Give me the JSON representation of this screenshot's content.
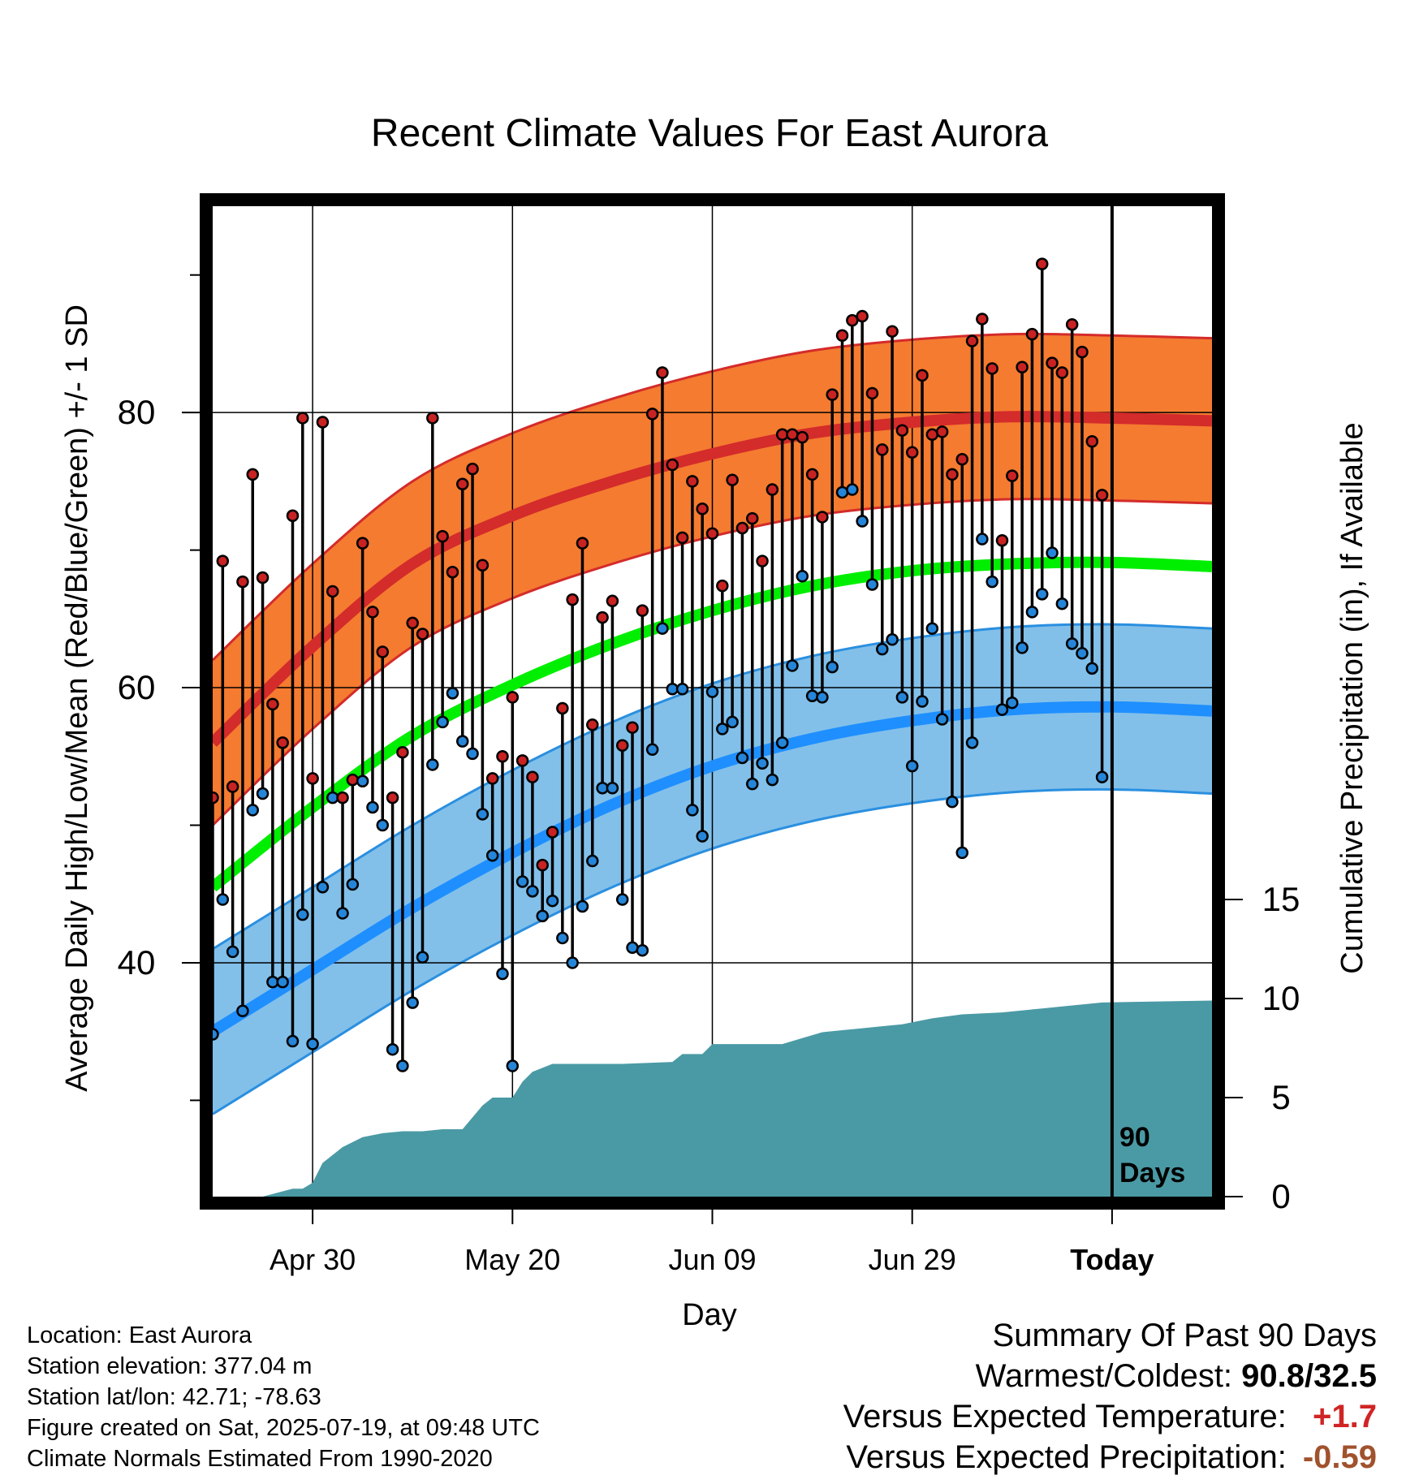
{
  "chart_data": {
    "type": "line",
    "title": "Recent Climate Values For East Aurora",
    "xlabel": "Day",
    "ylabel": "Average Daily High/Low/Mean (Red/Blue/Green) +/- 1 SD",
    "ylabel_right": "Cumulative Precipitation (in), If Available",
    "x_ticks": [
      "Apr 30",
      "May 20",
      "Jun 09",
      "Jun 29",
      "Today"
    ],
    "x_tick_days": [
      11,
      31,
      51,
      71,
      91
    ],
    "x_range_days": [
      1,
      101
    ],
    "y_ticks": [
      40,
      60,
      80
    ],
    "ylim": [
      23,
      95
    ],
    "y2_ticks": [
      0,
      5,
      10,
      15
    ],
    "y2lim": [
      0,
      50
    ],
    "grid": true,
    "today_marker_label": [
      "90",
      "Days"
    ],
    "normals": {
      "days": [
        1,
        11,
        21,
        31,
        41,
        51,
        61,
        71,
        81,
        91,
        101
      ],
      "high_mean": [
        56.0,
        63.0,
        69.0,
        72.5,
        75.0,
        77.0,
        78.5,
        79.3,
        79.7,
        79.6,
        79.4
      ],
      "high_sd": 6.0,
      "low_mean": [
        35.0,
        39.5,
        44.0,
        48.0,
        51.5,
        54.3,
        56.3,
        57.6,
        58.4,
        58.6,
        58.3
      ],
      "low_sd": 6.0,
      "mean": [
        45.5,
        51.3,
        56.5,
        60.2,
        63.2,
        65.6,
        67.4,
        68.5,
        69.0,
        69.1,
        68.8
      ]
    },
    "series": [
      {
        "name": "Daily High",
        "color": "#c82222",
        "x": [
          1,
          2,
          3,
          4,
          5,
          6,
          7,
          8,
          9,
          10,
          11,
          12,
          13,
          14,
          15,
          16,
          17,
          18,
          19,
          20,
          21,
          22,
          23,
          24,
          25,
          26,
          27,
          28,
          29,
          30,
          31,
          32,
          33,
          34,
          35,
          36,
          37,
          38,
          39,
          40,
          41,
          42,
          43,
          44,
          45,
          46,
          47,
          48,
          49,
          50,
          51,
          52,
          53,
          54,
          55,
          56,
          57,
          58,
          59,
          60,
          61,
          62,
          63,
          64,
          65,
          66,
          67,
          68,
          69,
          70,
          71,
          72,
          73,
          74,
          75,
          76,
          77,
          78,
          79,
          80,
          81,
          82,
          83,
          84,
          85,
          86,
          87,
          88,
          89,
          90
        ],
        "values": [
          52.0,
          69.2,
          52.8,
          67.7,
          75.5,
          68.0,
          58.8,
          56.0,
          72.5,
          79.6,
          53.4,
          79.3,
          67.0,
          52.0,
          53.3,
          70.5,
          65.5,
          62.6,
          52.0,
          55.3,
          64.7,
          63.9,
          79.6,
          71.0,
          68.4,
          74.8,
          75.9,
          68.9,
          53.4,
          55.0,
          59.3,
          54.7,
          53.5,
          47.1,
          49.5,
          58.5,
          66.4,
          70.5,
          57.3,
          65.1,
          66.3,
          55.8,
          57.1,
          65.6,
          79.9,
          82.9,
          76.2,
          70.9,
          75.0,
          73.0,
          71.2,
          67.4,
          75.1,
          71.6,
          72.3,
          69.2,
          74.4,
          78.4,
          78.4,
          78.2,
          75.5,
          72.4,
          81.3,
          85.6,
          86.7,
          87.0,
          81.4,
          77.3,
          85.9,
          78.7,
          77.1,
          82.7,
          78.4,
          78.6,
          75.5,
          76.6,
          85.2,
          86.8,
          83.2,
          70.7,
          75.4,
          83.3,
          85.7,
          90.8,
          83.6,
          82.9,
          86.4,
          84.4,
          77.9,
          74.0
        ]
      },
      {
        "name": "Daily Low",
        "color": "#2585d8",
        "x": [
          1,
          2,
          3,
          4,
          5,
          6,
          7,
          8,
          9,
          10,
          11,
          12,
          13,
          14,
          15,
          16,
          17,
          18,
          19,
          20,
          21,
          22,
          23,
          24,
          25,
          26,
          27,
          28,
          29,
          30,
          31,
          32,
          33,
          34,
          35,
          36,
          37,
          38,
          39,
          40,
          41,
          42,
          43,
          44,
          45,
          46,
          47,
          48,
          49,
          50,
          51,
          52,
          53,
          54,
          55,
          56,
          57,
          58,
          59,
          60,
          61,
          62,
          63,
          64,
          65,
          66,
          67,
          68,
          69,
          70,
          71,
          72,
          73,
          74,
          75,
          76,
          77,
          78,
          79,
          80,
          81,
          82,
          83,
          84,
          85,
          86,
          87,
          88,
          89,
          90
        ],
        "values": [
          34.8,
          44.6,
          40.8,
          36.5,
          51.1,
          52.3,
          38.6,
          38.6,
          34.3,
          43.5,
          34.1,
          45.5,
          52.0,
          43.6,
          45.7,
          53.2,
          51.3,
          50.0,
          33.7,
          32.5,
          37.1,
          40.4,
          54.4,
          57.5,
          59.6,
          56.1,
          55.2,
          50.8,
          47.8,
          39.2,
          32.5,
          45.9,
          45.2,
          43.4,
          44.5,
          41.8,
          40.0,
          44.1,
          47.4,
          52.7,
          52.7,
          44.6,
          41.1,
          40.9,
          55.5,
          64.3,
          59.9,
          59.9,
          51.1,
          49.2,
          59.7,
          57.0,
          57.5,
          54.9,
          53.0,
          54.5,
          53.3,
          56.0,
          61.6,
          68.1,
          59.4,
          59.3,
          61.5,
          74.2,
          74.4,
          72.1,
          67.5,
          62.8,
          63.5,
          59.3,
          54.3,
          59.0,
          64.3,
          57.7,
          51.7,
          48.0,
          56.0,
          70.8,
          67.7,
          58.4,
          58.9,
          62.9,
          65.5,
          66.8,
          69.8,
          66.1,
          63.2,
          62.5,
          61.4,
          53.5
        ]
      },
      {
        "name": "Cumulative Precipitation",
        "color": "#4a9aa5",
        "axis": "right",
        "x": [
          1,
          6,
          9,
          10,
          11,
          12,
          14,
          16,
          18,
          20,
          22,
          24,
          26,
          27,
          28,
          29,
          31,
          32,
          33,
          35,
          38,
          42,
          47,
          48,
          50,
          51,
          58,
          60,
          62,
          64,
          66,
          68,
          70,
          71,
          73,
          76,
          80,
          84,
          86,
          90,
          101
        ],
        "values": [
          0,
          0,
          0.4,
          0.4,
          0.7,
          1.7,
          2.5,
          3.0,
          3.2,
          3.3,
          3.3,
          3.4,
          3.4,
          4.0,
          4.6,
          5.0,
          5.0,
          5.8,
          6.3,
          6.7,
          6.7,
          6.7,
          6.8,
          7.2,
          7.2,
          7.7,
          7.7,
          8.0,
          8.3,
          8.4,
          8.5,
          8.6,
          8.7,
          8.8,
          9.0,
          9.2,
          9.3,
          9.5,
          9.6,
          9.8,
          9.9
        ]
      }
    ]
  },
  "info": {
    "location": "Location: East Aurora",
    "elevation": "Station elevation: 377.04 m",
    "latlon": "Station lat/lon: 42.71; -78.63",
    "created": "Figure created on Sat, 2025-07-19, at 09:48 UTC",
    "normals_period": "Climate Normals Estimated From 1990-2020"
  },
  "summary": {
    "title": "Summary Of Past 90 Days",
    "warm_cold_label": "Warmest/Coldest:",
    "warm_cold_value": "90.8/32.5",
    "temp_label": "Versus Expected Temperature:",
    "temp_value": "+1.7",
    "temp_color": "#d02525",
    "precip_label": "Versus Expected Precipitation:",
    "precip_value": "-0.59",
    "precip_color": "#a0522d"
  }
}
